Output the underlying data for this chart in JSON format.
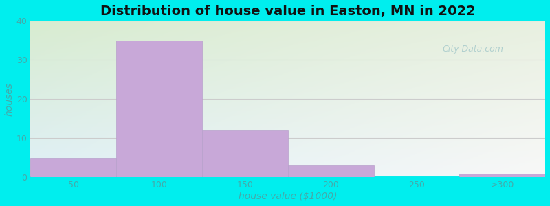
{
  "title": "Distribution of house value in Easton, MN in 2022",
  "xlabel": "house value ($1000)",
  "ylabel": "houses",
  "bar_values": [
    5,
    35,
    12,
    3,
    0,
    1
  ],
  "bar_labels": [
    "50",
    "100",
    "150",
    "200",
    "250",
    ">300"
  ],
  "bar_color": "#c8a8d8",
  "bar_edge_color": "#b8a0cc",
  "ylim": [
    0,
    40
  ],
  "yticks": [
    0,
    10,
    20,
    30,
    40
  ],
  "background_outer": "#00eeee",
  "background_inner_top_left": "#d8ecd0",
  "background_inner_top_right": "#e8f0e0",
  "background_inner_bottom_left": "#e0f0f8",
  "background_inner_bottom_right": "#f8f8f8",
  "grid_color": "#cccccc",
  "title_fontsize": 14,
  "axis_label_fontsize": 10,
  "tick_fontsize": 9,
  "tick_color": "#44aaaa",
  "watermark": "City-Data.com"
}
